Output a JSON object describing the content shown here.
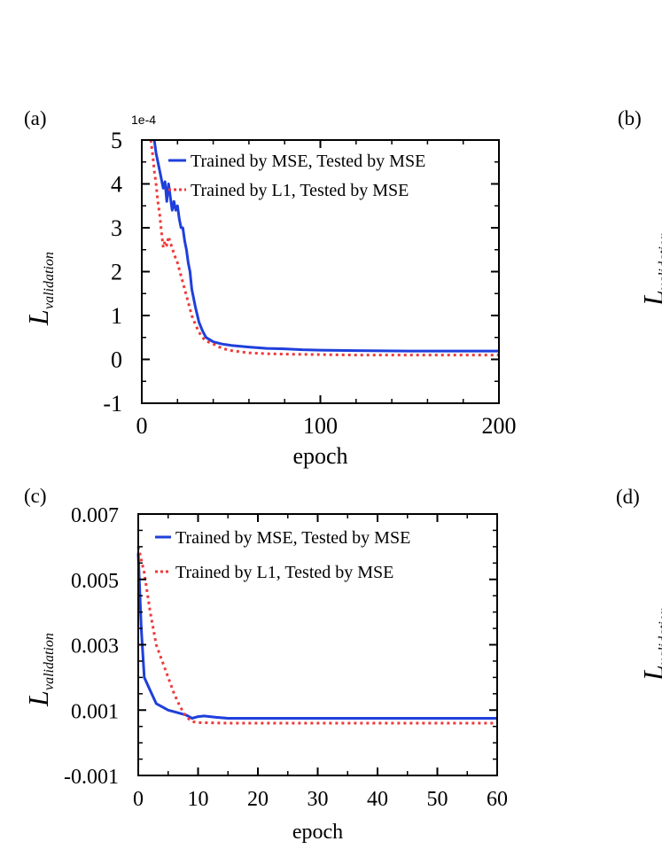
{
  "panel_labels": [
    "(a)",
    "(b)",
    "(c)",
    "(d)"
  ],
  "colors": {
    "mse": "#1f3fdc",
    "l1": "#ee3a3a",
    "axis": "#000000"
  },
  "chart_data": [
    {
      "id": "a",
      "type": "line",
      "scale_note": "1e-4",
      "ylabel": "L",
      "ylabel_sub": "validation",
      "xlabel": "epoch",
      "xlim": [
        0,
        200
      ],
      "ylim": [
        -1,
        5
      ],
      "xticks": [
        0,
        100,
        200
      ],
      "xtick_labels": [
        "0",
        "100",
        "200"
      ],
      "yticks": [
        -1,
        0,
        1,
        2,
        3,
        4,
        5
      ],
      "ytick_labels": [
        "-1",
        "0",
        "1",
        "2",
        "3",
        "4",
        "5"
      ],
      "x_minor_step": 20,
      "y_minor_step": 0.5,
      "legend_position": "top-right",
      "series": [
        {
          "name": "Trained by MSE, Tested by MSE",
          "style": "solid",
          "x": [
            7,
            8,
            10,
            12,
            13,
            14,
            15,
            16,
            17,
            18,
            19,
            20,
            21,
            22,
            23,
            24,
            25,
            26,
            27,
            28,
            30,
            32,
            34,
            36,
            38,
            40,
            45,
            50,
            60,
            70,
            80,
            90,
            100,
            120,
            150,
            200
          ],
          "y": [
            5.0,
            4.7,
            4.3,
            3.9,
            4.05,
            3.6,
            4.0,
            3.7,
            3.4,
            3.6,
            3.4,
            3.5,
            3.2,
            3.0,
            3.0,
            2.7,
            2.5,
            2.2,
            2.0,
            1.6,
            1.2,
            0.85,
            0.65,
            0.5,
            0.45,
            0.4,
            0.35,
            0.32,
            0.28,
            0.25,
            0.24,
            0.22,
            0.21,
            0.2,
            0.19,
            0.19
          ]
        },
        {
          "name": "Trained by L1, Tested by MSE",
          "style": "dotted",
          "x": [
            5,
            6,
            7,
            8,
            9,
            10,
            11,
            12,
            13,
            14,
            15,
            16,
            17,
            18,
            19,
            20,
            22,
            24,
            26,
            28,
            30,
            32,
            34,
            36,
            40,
            45,
            50,
            60,
            70,
            80,
            100,
            120,
            150,
            200
          ],
          "y": [
            5.0,
            4.7,
            4.3,
            4.0,
            3.6,
            3.3,
            2.9,
            2.55,
            2.7,
            2.6,
            2.8,
            2.65,
            2.55,
            2.4,
            2.3,
            2.2,
            1.9,
            1.6,
            1.3,
            1.0,
            0.8,
            0.62,
            0.5,
            0.42,
            0.35,
            0.25,
            0.2,
            0.15,
            0.13,
            0.12,
            0.11,
            0.1,
            0.1,
            0.1
          ]
        }
      ]
    },
    {
      "id": "c",
      "type": "line",
      "ylabel": "L",
      "ylabel_sub": "validation",
      "xlabel": "epoch",
      "xlim": [
        0,
        60
      ],
      "ylim": [
        -0.001,
        0.007
      ],
      "xticks": [
        0,
        10,
        20,
        30,
        40,
        50,
        60
      ],
      "xtick_labels": [
        "0",
        "10",
        "20",
        "30",
        "40",
        "50",
        "60"
      ],
      "yticks": [
        -0.001,
        0.001,
        0.003,
        0.005,
        0.007
      ],
      "ytick_labels": [
        "-0.001",
        "0.001",
        "0.003",
        "0.005",
        "0.007"
      ],
      "x_minor_step": 5,
      "y_minor_step": 0.0005,
      "legend_position": "top-right",
      "series": [
        {
          "name": "Trained by MSE, Tested by MSE",
          "style": "solid",
          "x": [
            0,
            0.5,
            1,
            2,
            3,
            4,
            5,
            6,
            7,
            8,
            9,
            10,
            11,
            12,
            13,
            15,
            20,
            30,
            60
          ],
          "y": [
            0.0058,
            0.0035,
            0.002,
            0.0016,
            0.0012,
            0.0011,
            0.001,
            0.00095,
            0.0009,
            0.00085,
            0.00075,
            0.0008,
            0.00082,
            0.0008,
            0.00078,
            0.00075,
            0.00075,
            0.00075,
            0.00075
          ]
        },
        {
          "name": "Trained by L1, Tested by MSE",
          "style": "dotted",
          "x": [
            0,
            1,
            2,
            3,
            4,
            5,
            6,
            7,
            8,
            9,
            10,
            15,
            20,
            30,
            60
          ],
          "y": [
            0.006,
            0.0052,
            0.004,
            0.003,
            0.0025,
            0.002,
            0.0015,
            0.0011,
            0.0008,
            0.00065,
            0.00062,
            0.0006,
            0.0006,
            0.0006,
            0.0006
          ]
        }
      ]
    }
  ]
}
